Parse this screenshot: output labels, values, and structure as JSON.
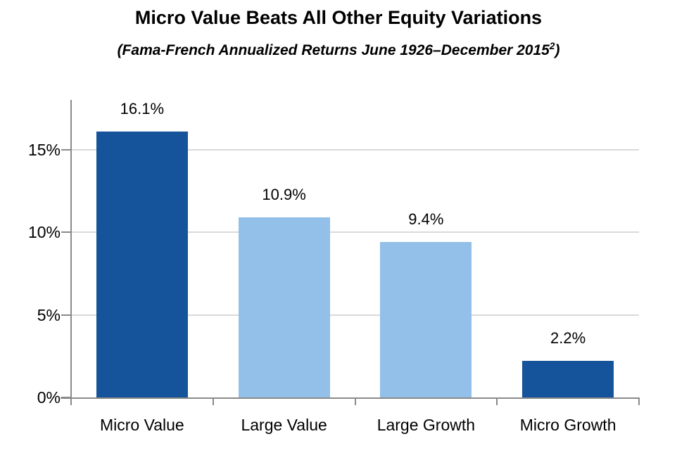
{
  "chart_data": {
    "type": "bar",
    "title": "Micro Value Beats All Other Equity Variations",
    "subtitle_text": "(Fama-French Annualized Returns June 1926–December 2015",
    "subtitle_superscript": "2",
    "subtitle_close": ")",
    "categories": [
      "Micro Value",
      "Large Value",
      "Large Growth",
      "Micro Growth"
    ],
    "values": [
      16.1,
      10.9,
      9.4,
      2.2
    ],
    "value_labels": [
      "16.1%",
      "10.9%",
      "9.4%",
      "2.2%"
    ],
    "bar_colors": [
      "#15549a",
      "#92c0e8",
      "#92c0e8",
      "#15549a"
    ],
    "xlabel": "",
    "ylabel": "",
    "ylim": [
      0,
      18
    ],
    "yticks": [
      0,
      5,
      10,
      15
    ],
    "ytick_labels": [
      "0%",
      "5%",
      "10%",
      "15%"
    ],
    "grid": true,
    "legend_position": "none",
    "colors": {
      "dark_blue": "#15549a",
      "light_blue": "#92c0e8",
      "gridline": "#d9d9d9",
      "axis": "#8a8a8a",
      "text": "#000000"
    }
  }
}
